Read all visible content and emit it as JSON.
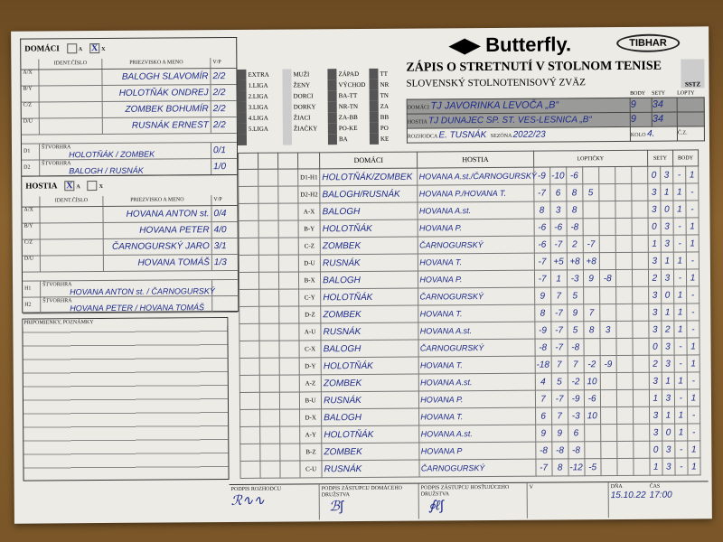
{
  "brand": {
    "logo": "Butterfly.",
    "sponsor": "TIBHAR",
    "federation_badge": "SSTZ"
  },
  "header": {
    "title": "ZÁPIS O STRETNUTÍ V STOLNOM TENISE",
    "subtitle": "SLOVENSKÝ STOLNOTENISOVÝ ZVÄZ",
    "col_body": "BODY",
    "col_sety": "SETY",
    "col_lopty": "LOPTY",
    "home_label": "DOMÁCI",
    "home_team": "TJ JAVORINKA LEVOČA „B“",
    "home_body": "9",
    "home_sety": "34",
    "away_label": "HOSTIA",
    "away_team": "TJ DUNAJEC SP. ST. VES-LESNICA „B“",
    "away_body": "9",
    "away_sety": "34",
    "referee_label": "ROZHODCA",
    "referee": "E. TUSNÁK",
    "season_label": "SEZÓNA",
    "season": "2022/23",
    "round_label": "KOLO",
    "round": "4.",
    "cs_label": "Č.Z."
  },
  "categories": {
    "leagues": [
      "EXTRA",
      "1.LIGA",
      "2.LIGA",
      "3.LIGA",
      "4.LIGA",
      "5.LIGA",
      ""
    ],
    "groups": [
      "MUŽI",
      "ŽENY",
      "DORCI",
      "DORKY",
      "ŽIACI",
      "ŽIAČKY",
      ""
    ],
    "regions": [
      "ZÁPAD",
      "VÝCHOD",
      "BA-TT",
      "NR-TN",
      "ZA-BB",
      "PO-KE",
      "BA"
    ],
    "codes": [
      "TT",
      "NR",
      "TN",
      "ZA",
      "BB",
      "PO",
      "KE"
    ]
  },
  "home": {
    "label": "DOMÁCI",
    "opt_a": "A",
    "opt_x": "X",
    "selected": "X",
    "ident_label": "IDENT.ČÍSLO",
    "name_label": "PRIEZVISKO A MENO",
    "vp_label": "V/P",
    "players": [
      {
        "pos": "A/X",
        "name": "BALOGH SLAVOMÍR",
        "vp": "2/2"
      },
      {
        "pos": "B/Y",
        "name": "HOLOTŇÁK ONDREJ",
        "vp": "2/2"
      },
      {
        "pos": "C/Z",
        "name": "ZOMBEK BOHUMÍR",
        "vp": "2/2"
      },
      {
        "pos": "D/U",
        "name": "RUSNÁK ERNEST",
        "vp": "2/2"
      }
    ],
    "doubles_label": "ŠTVORHRA",
    "doubles": [
      {
        "pos": "D1",
        "name": "HOLOTŇÁK / ZOMBEK",
        "vp": "0/1"
      },
      {
        "pos": "D2",
        "name": "BALOGH / RUSNÁK",
        "vp": "1/0"
      }
    ]
  },
  "away": {
    "label": "HOSTIA",
    "opt_a": "A",
    "opt_x": "X",
    "selected": "A",
    "ident_label": "IDENT.ČÍSLO",
    "name_label": "PRIEZVISKO A MENO",
    "vp_label": "V/P",
    "players": [
      {
        "pos": "A/X",
        "name": "HOVANA ANTON st.",
        "vp": "0/4"
      },
      {
        "pos": "B/Y",
        "name": "HOVANA PETER",
        "vp": "4/0"
      },
      {
        "pos": "C/Z",
        "name": "ČARNOGURSKÝ JARO",
        "vp": "3/1"
      },
      {
        "pos": "D/U",
        "name": "HOVANA TOMÁŠ",
        "vp": "1/3"
      }
    ],
    "doubles_label": "ŠTVORHRA",
    "doubles": [
      {
        "pos": "H1",
        "name": "HOVANA ANTON st. / ČARNOGURSKÝ",
        "vp": ""
      },
      {
        "pos": "H2",
        "name": "HOVANA PETER / HOVANA TOMÁŠ",
        "vp": ""
      }
    ]
  },
  "notes_label": "PRIPOMIENKY, POZNÁMKY",
  "matches_header": {
    "domaci": "DOMÁCI",
    "hostia": "HOSTIA",
    "lopticky": "LOPTIČKY",
    "sety": "SETY",
    "body": "BODY"
  },
  "matches": [
    {
      "order": "D1-H1",
      "home": "HOLOTŇÁK/ZOMBEK",
      "away": "HOVANA A.st./ČARNOGURSKÝ",
      "balls": [
        "-9",
        "-10",
        "-6"
      ],
      "sets": [
        "0",
        "3"
      ],
      "points": [
        "-",
        "1"
      ]
    },
    {
      "order": "D2-H2",
      "home": "BALOGH/RUSNÁK",
      "away": "HOVANA P./HOVANA T.",
      "balls": [
        "-7",
        "6",
        "8",
        "5"
      ],
      "sets": [
        "3",
        "1"
      ],
      "points": [
        "1",
        "-"
      ]
    },
    {
      "order": "A-X",
      "home": "BALOGH",
      "away": "HOVANA A.st.",
      "balls": [
        "8",
        "3",
        "8"
      ],
      "sets": [
        "3",
        "0"
      ],
      "points": [
        "1",
        "-"
      ]
    },
    {
      "order": "B-Y",
      "home": "HOLOTŇÁK",
      "away": "HOVANA P.",
      "balls": [
        "-6",
        "-6",
        "-8"
      ],
      "sets": [
        "0",
        "3"
      ],
      "points": [
        "-",
        "1"
      ]
    },
    {
      "order": "C-Z",
      "home": "ZOMBEK",
      "away": "ČARNOGURSKÝ",
      "balls": [
        "-6",
        "-7",
        "2",
        "-7"
      ],
      "sets": [
        "1",
        "3"
      ],
      "points": [
        "-",
        "1"
      ]
    },
    {
      "order": "D-U",
      "home": "RUSNÁK",
      "away": "HOVANA T.",
      "balls": [
        "-7",
        "+5",
        "+8",
        "+8"
      ],
      "sets": [
        "3",
        "1"
      ],
      "points": [
        "1",
        "-"
      ]
    },
    {
      "order": "B-X",
      "home": "BALOGH",
      "away": "HOVANA P.",
      "balls": [
        "-7",
        "1",
        "-3",
        "9",
        "-8"
      ],
      "sets": [
        "2",
        "3"
      ],
      "points": [
        "-",
        "1"
      ]
    },
    {
      "order": "C-Y",
      "home": "HOLOTŇÁK",
      "away": "ČARNOGURSKÝ",
      "balls": [
        "9",
        "7",
        "5"
      ],
      "sets": [
        "3",
        "0"
      ],
      "points": [
        "1",
        "-"
      ]
    },
    {
      "order": "D-Z",
      "home": "ZOMBEK",
      "away": "HOVANA T.",
      "balls": [
        "8",
        "-7",
        "9",
        "7"
      ],
      "sets": [
        "3",
        "1"
      ],
      "points": [
        "1",
        "-"
      ]
    },
    {
      "order": "A-U",
      "home": "RUSNÁK",
      "away": "HOVANA A.st.",
      "balls": [
        "-9",
        "-7",
        "5",
        "8",
        "3"
      ],
      "sets": [
        "3",
        "2"
      ],
      "points": [
        "1",
        "-"
      ]
    },
    {
      "order": "C-X",
      "home": "BALOGH",
      "away": "ČARNOGURSKÝ",
      "balls": [
        "-8",
        "-7",
        "-8"
      ],
      "sets": [
        "0",
        "3"
      ],
      "points": [
        "-",
        "1"
      ]
    },
    {
      "order": "D-Y",
      "home": "HOLOTŇÁK",
      "away": "HOVANA T.",
      "balls": [
        "-18",
        "7",
        "7",
        "-2",
        "-9"
      ],
      "sets": [
        "2",
        "3"
      ],
      "points": [
        "-",
        "1"
      ]
    },
    {
      "order": "A-Z",
      "home": "ZOMBEK",
      "away": "HOVANA A.st.",
      "balls": [
        "4",
        "5",
        "-2",
        "10"
      ],
      "sets": [
        "3",
        "1"
      ],
      "points": [
        "1",
        "-"
      ]
    },
    {
      "order": "B-U",
      "home": "RUSNÁK",
      "away": "HOVANA P.",
      "balls": [
        "7",
        "-7",
        "-9",
        "-6"
      ],
      "sets": [
        "1",
        "3"
      ],
      "points": [
        "-",
        "1"
      ]
    },
    {
      "order": "D-X",
      "home": "BALOGH",
      "away": "HOVANA T.",
      "balls": [
        "6",
        "7",
        "-3",
        "10"
      ],
      "sets": [
        "3",
        "1"
      ],
      "points": [
        "1",
        "-"
      ]
    },
    {
      "order": "A-Y",
      "home": "HOLOTŇÁK",
      "away": "HOVANA A.st.",
      "balls": [
        "9",
        "9",
        "6"
      ],
      "sets": [
        "3",
        "0"
      ],
      "points": [
        "1",
        "-"
      ]
    },
    {
      "order": "B-Z",
      "home": "ZOMBEK",
      "away": "HOVANA P",
      "balls": [
        "-8",
        "-8",
        "-8"
      ],
      "sets": [
        "0",
        "3"
      ],
      "points": [
        "-",
        "1"
      ]
    },
    {
      "order": "C-U",
      "home": "RUSNÁK",
      "away": "ČARNOGURSKÝ",
      "balls": [
        "-7",
        "8",
        "-12",
        "-5"
      ],
      "sets": [
        "1",
        "3"
      ],
      "points": [
        "-",
        "1"
      ]
    }
  ],
  "footer": {
    "referee_sig_label": "PODPIS ROZHODCU",
    "home_sig_label": "PODPIS ZÁSTUPCU DOMÁCEHO DRUŽSTVA",
    "away_sig_label": "PODPIS ZÁSTUPCU HOSŤUJÚCEHO DRUŽSTVA",
    "v_label": "V",
    "date_label": "DŇA",
    "date": "15.10.22",
    "time_label": "ČAS",
    "time": "17:00"
  }
}
